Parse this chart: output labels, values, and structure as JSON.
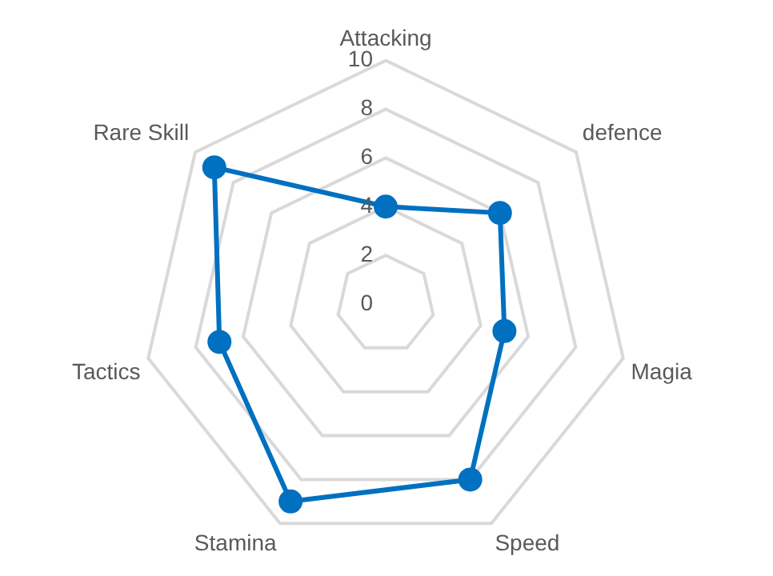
{
  "chart_data": {
    "type": "radar",
    "categories": [
      "Attacking",
      "defence",
      "Magia",
      "Speed",
      "Stamina",
      "Tactics",
      "Rare Skill"
    ],
    "series": [
      {
        "color": "#0070c0",
        "values": [
          4,
          6,
          5,
          8,
          9,
          7,
          9
        ]
      }
    ],
    "ylim": [
      0,
      10
    ],
    "yticks": [
      0,
      2,
      4,
      6,
      8,
      10
    ],
    "grid": true,
    "legend": false,
    "marker": "circle",
    "line_style": "solid"
  }
}
